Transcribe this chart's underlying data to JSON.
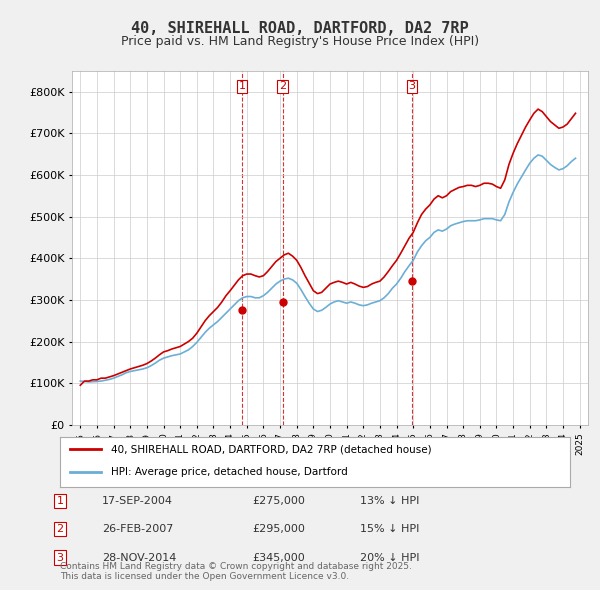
{
  "title": "40, SHIREHALL ROAD, DARTFORD, DA2 7RP",
  "subtitle": "Price paid vs. HM Land Registry's House Price Index (HPI)",
  "background_color": "#f0f0f0",
  "plot_bg_color": "#ffffff",
  "ylim": [
    0,
    850000
  ],
  "yticks": [
    0,
    100000,
    200000,
    300000,
    400000,
    500000,
    600000,
    700000,
    800000
  ],
  "ytick_labels": [
    "£0",
    "£100K",
    "£200K",
    "£300K",
    "£400K",
    "£500K",
    "£600K",
    "£700K",
    "£800K"
  ],
  "hpi_color": "#6baed6",
  "sale_color": "#cc0000",
  "vline_color": "#cc0000",
  "grid_color": "#cccccc",
  "sale_dates": [
    2004.72,
    2007.15,
    2014.91
  ],
  "sale_prices": [
    275000,
    295000,
    345000
  ],
  "sale_labels": [
    "1",
    "2",
    "3"
  ],
  "legend_sale_label": "40, SHIREHALL ROAD, DARTFORD, DA2 7RP (detached house)",
  "legend_hpi_label": "HPI: Average price, detached house, Dartford",
  "table_entries": [
    {
      "num": "1",
      "date": "17-SEP-2004",
      "price": "£275,000",
      "hpi": "13% ↓ HPI"
    },
    {
      "num": "2",
      "date": "26-FEB-2007",
      "price": "£295,000",
      "hpi": "15% ↓ HPI"
    },
    {
      "num": "3",
      "date": "28-NOV-2014",
      "price": "£345,000",
      "hpi": "20% ↓ HPI"
    }
  ],
  "footer": "Contains HM Land Registry data © Crown copyright and database right 2025.\nThis data is licensed under the Open Government Licence v3.0.",
  "hpi_data": {
    "years": [
      1995.0,
      1995.25,
      1995.5,
      1995.75,
      1996.0,
      1996.25,
      1996.5,
      1996.75,
      1997.0,
      1997.25,
      1997.5,
      1997.75,
      1998.0,
      1998.25,
      1998.5,
      1998.75,
      1999.0,
      1999.25,
      1999.5,
      1999.75,
      2000.0,
      2000.25,
      2000.5,
      2000.75,
      2001.0,
      2001.25,
      2001.5,
      2001.75,
      2002.0,
      2002.25,
      2002.5,
      2002.75,
      2003.0,
      2003.25,
      2003.5,
      2003.75,
      2004.0,
      2004.25,
      2004.5,
      2004.75,
      2005.0,
      2005.25,
      2005.5,
      2005.75,
      2006.0,
      2006.25,
      2006.5,
      2006.75,
      2007.0,
      2007.25,
      2007.5,
      2007.75,
      2008.0,
      2008.25,
      2008.5,
      2008.75,
      2009.0,
      2009.25,
      2009.5,
      2009.75,
      2010.0,
      2010.25,
      2010.5,
      2010.75,
      2011.0,
      2011.25,
      2011.5,
      2011.75,
      2012.0,
      2012.25,
      2012.5,
      2012.75,
      2013.0,
      2013.25,
      2013.5,
      2013.75,
      2014.0,
      2014.25,
      2014.5,
      2014.75,
      2015.0,
      2015.25,
      2015.5,
      2015.75,
      2016.0,
      2016.25,
      2016.5,
      2016.75,
      2017.0,
      2017.25,
      2017.5,
      2017.75,
      2018.0,
      2018.25,
      2018.5,
      2018.75,
      2019.0,
      2019.25,
      2019.5,
      2019.75,
      2020.0,
      2020.25,
      2020.5,
      2020.75,
      2021.0,
      2021.25,
      2021.5,
      2021.75,
      2022.0,
      2022.25,
      2022.5,
      2022.75,
      2023.0,
      2023.25,
      2023.5,
      2023.75,
      2024.0,
      2024.25,
      2024.5,
      2024.75
    ],
    "values": [
      105000,
      104000,
      103000,
      103500,
      104000,
      105000,
      107000,
      109000,
      112000,
      116000,
      120000,
      125000,
      128000,
      130000,
      132000,
      134000,
      137000,
      142000,
      148000,
      155000,
      160000,
      163000,
      166000,
      168000,
      170000,
      175000,
      180000,
      188000,
      198000,
      210000,
      222000,
      232000,
      240000,
      248000,
      258000,
      268000,
      278000,
      288000,
      298000,
      305000,
      308000,
      308000,
      305000,
      305000,
      310000,
      318000,
      328000,
      338000,
      345000,
      350000,
      352000,
      348000,
      340000,
      325000,
      308000,
      292000,
      278000,
      272000,
      275000,
      282000,
      290000,
      295000,
      298000,
      295000,
      292000,
      295000,
      292000,
      288000,
      286000,
      288000,
      292000,
      295000,
      298000,
      305000,
      315000,
      328000,
      338000,
      352000,
      368000,
      382000,
      395000,
      415000,
      430000,
      442000,
      450000,
      462000,
      468000,
      465000,
      470000,
      478000,
      482000,
      485000,
      488000,
      490000,
      490000,
      490000,
      492000,
      495000,
      495000,
      495000,
      492000,
      490000,
      505000,
      535000,
      558000,
      578000,
      595000,
      612000,
      628000,
      640000,
      648000,
      645000,
      635000,
      625000,
      618000,
      612000,
      615000,
      622000,
      632000,
      640000
    ],
    "sale_hpi_values": [
      95000,
      105000,
      105000,
      108000,
      108000,
      112000,
      112000,
      115000,
      118000,
      122000,
      126000,
      130000,
      134000,
      137000,
      140000,
      143000,
      147000,
      153000,
      160000,
      168000,
      175000,
      178000,
      182000,
      185000,
      188000,
      194000,
      200000,
      208000,
      220000,
      235000,
      250000,
      262000,
      272000,
      282000,
      295000,
      310000,
      322000,
      335000,
      348000,
      358000,
      362000,
      362000,
      358000,
      355000,
      358000,
      368000,
      380000,
      392000,
      400000,
      408000,
      412000,
      405000,
      395000,
      378000,
      358000,
      340000,
      322000,
      315000,
      318000,
      328000,
      338000,
      342000,
      345000,
      342000,
      338000,
      342000,
      338000,
      333000,
      330000,
      332000,
      338000,
      342000,
      345000,
      355000,
      368000,
      382000,
      395000,
      412000,
      430000,
      448000,
      462000,
      485000,
      505000,
      518000,
      528000,
      542000,
      550000,
      545000,
      550000,
      560000,
      565000,
      570000,
      572000,
      575000,
      575000,
      572000,
      575000,
      580000,
      580000,
      578000,
      572000,
      568000,
      588000,
      625000,
      652000,
      675000,
      695000,
      715000,
      732000,
      748000,
      758000,
      752000,
      740000,
      728000,
      720000,
      712000,
      715000,
      722000,
      735000,
      748000
    ]
  }
}
